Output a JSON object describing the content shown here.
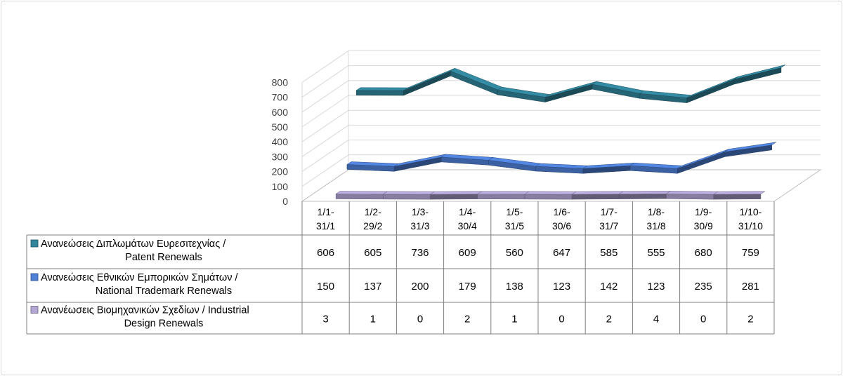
{
  "chart_data": {
    "type": "line",
    "style": "3d-line-with-data-table",
    "ylim": [
      0,
      800
    ],
    "y_ticks": [
      "0",
      "100",
      "200",
      "300",
      "400",
      "500",
      "600",
      "700",
      "800"
    ],
    "category_lines": [
      [
        "1/1-",
        "31/1"
      ],
      [
        "1/2-",
        "29/2"
      ],
      [
        "1/3-",
        "31/3"
      ],
      [
        "1/4-",
        "30/4"
      ],
      [
        "1/5-",
        "31/5"
      ],
      [
        "1/6-",
        "30/6"
      ],
      [
        "1/7-",
        "31/7"
      ],
      [
        "1/8-",
        "31/8"
      ],
      [
        "1/9-",
        "30/9"
      ],
      [
        "1/10-",
        "31/10"
      ]
    ],
    "series": [
      {
        "name": "Ανανεώσεις Διπλωμάτων Ευρεσιτεχνίας  / Patent Renewals",
        "legend_lines": [
          "Ανανεώσεις Διπλωμάτων Ευρεσιτεχνίας  /",
          "Patent Renewals"
        ],
        "color": "#31859c",
        "values": [
          606,
          605,
          736,
          609,
          560,
          647,
          585,
          555,
          680,
          759
        ]
      },
      {
        "name": "Ανανεώσεις Εθνικών Εμπορικών Σημάτων / National Trademark Renewals",
        "legend_lines": [
          "Ανανεώσεις Εθνικών Εμπορικών Σημάτων /",
          "National Trademark Renewals"
        ],
        "color": "#4f81d9",
        "values": [
          150,
          137,
          200,
          179,
          138,
          123,
          142,
          123,
          235,
          281
        ]
      },
      {
        "name": "Ανανέωσεις Βιομηχανικών Σχεδίων / Industrial Design Renewals",
        "legend_lines": [
          "Ανανέωσεις Βιομηχανικών Σχεδίων / Industrial",
          "Design Renewals"
        ],
        "color": "#b4a7d6",
        "values": [
          3,
          1,
          0,
          2,
          1,
          0,
          2,
          4,
          0,
          2
        ]
      }
    ]
  }
}
